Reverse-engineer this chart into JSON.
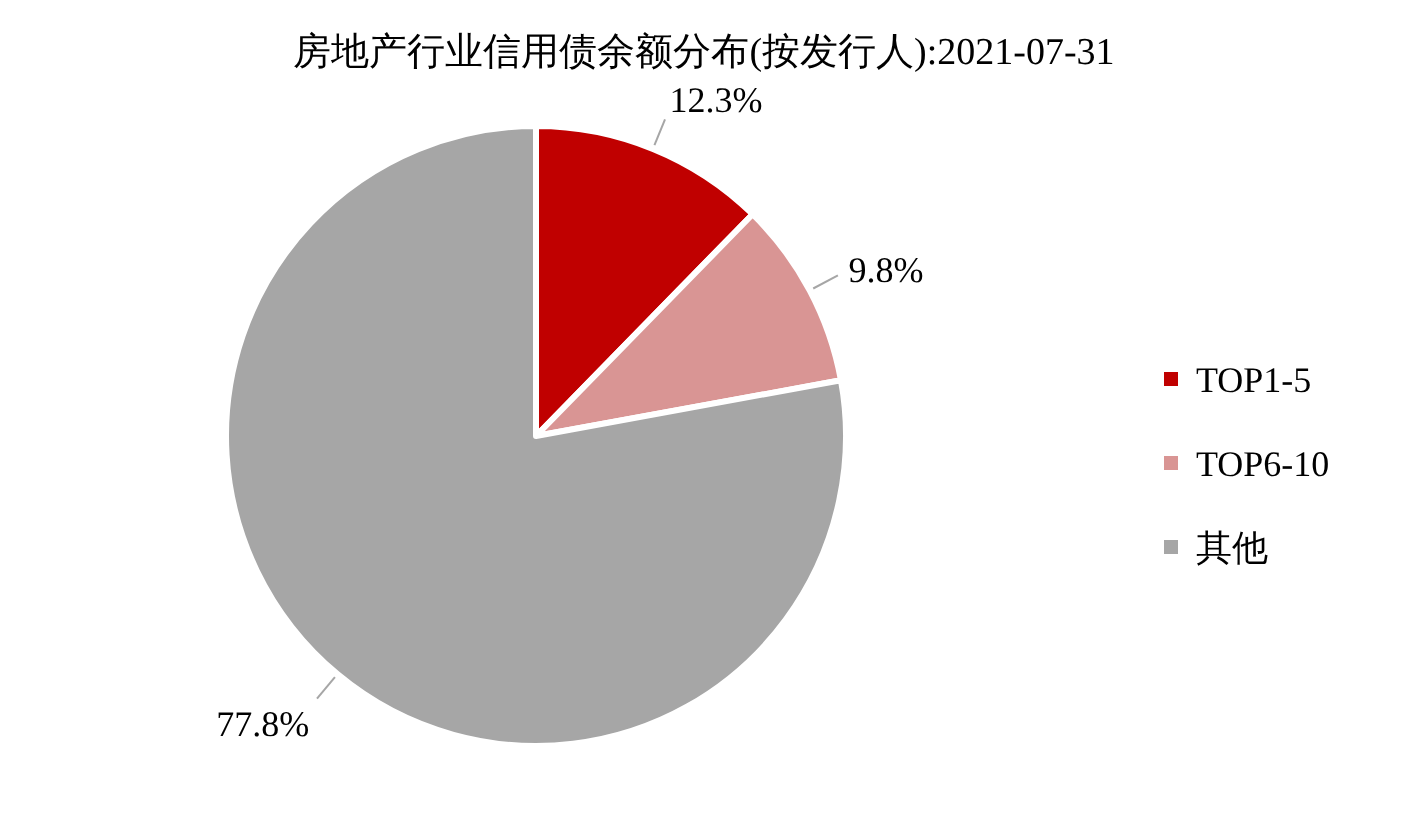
{
  "chart_data": {
    "type": "pie",
    "title": "房地产行业信用债余额分布(按发行人):2021-07-31",
    "categories": [
      "TOP1-5",
      "TOP6-10",
      "其他"
    ],
    "values": [
      12.3,
      9.8,
      77.8
    ],
    "value_labels": [
      "12.3%",
      "9.8%",
      "77.8%"
    ],
    "colors": [
      "#c00000",
      "#d99594",
      "#a6a6a6"
    ],
    "legend": "right"
  }
}
